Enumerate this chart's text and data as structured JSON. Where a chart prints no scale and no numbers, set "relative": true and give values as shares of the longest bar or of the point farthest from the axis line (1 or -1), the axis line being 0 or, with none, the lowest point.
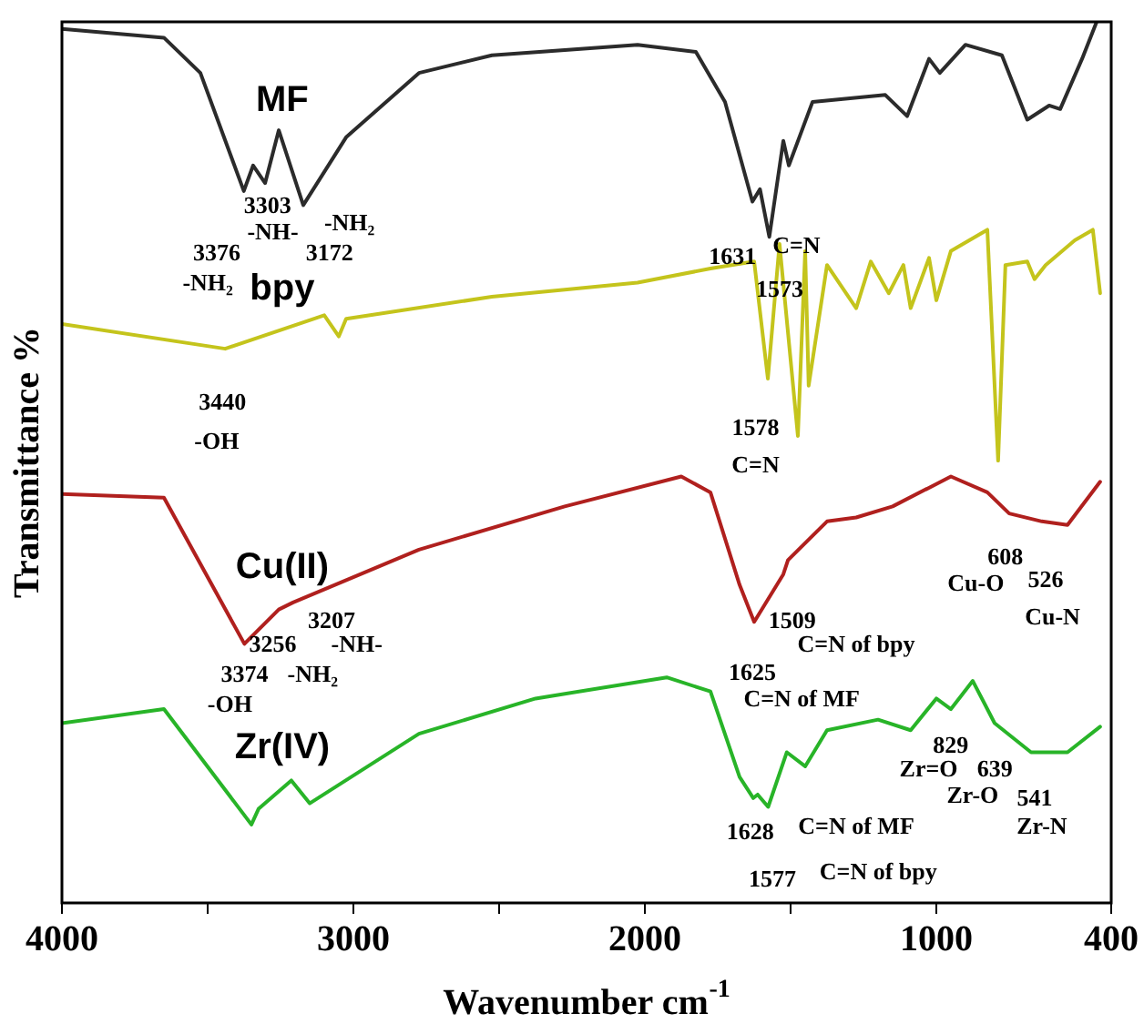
{
  "chart_data": {
    "type": "line",
    "relative": true,
    "xlabel": "Wavenumber cm$^{-1}$",
    "ylabel": "Transmittance %",
    "xlim": [
      4000,
      400
    ],
    "xticks": [
      4000,
      {
        "value": 3500,
        "label": null
      },
      3000,
      {
        "value": 2500,
        "label": null
      },
      2000,
      {
        "value": 1500,
        "label": null
      },
      1000,
      400
    ],
    "grid": false,
    "legend": false,
    "marker": "none",
    "line_style": "solid",
    "series": [
      {
        "name": "MF",
        "color": "#2b2b2b",
        "x": [
          4000,
          3650,
          3525,
          3376,
          3344,
          3303,
          3256,
          3172,
          3025,
          2775,
          2525,
          2025,
          1825,
          1725,
          1631,
          1605,
          1573,
          1525,
          1506,
          1425,
          1175,
          1100,
          1025,
          988,
          900,
          775,
          688,
          613,
          575,
          500,
          450
        ],
        "values": [
          0.992,
          0.982,
          0.942,
          0.808,
          0.837,
          0.817,
          0.877,
          0.792,
          0.869,
          0.942,
          0.962,
          0.974,
          0.966,
          0.909,
          0.796,
          0.81,
          0.756,
          0.865,
          0.837,
          0.909,
          0.917,
          0.893,
          0.958,
          0.942,
          0.974,
          0.962,
          0.889,
          0.905,
          0.901,
          0.958,
          1
        ]
      },
      {
        "name": "bpy",
        "color": "#c4c41c",
        "x": [
          4000,
          3440,
          3100,
          3050,
          3025,
          2525,
          2025,
          1775,
          1625,
          1578,
          1538,
          1475,
          1450,
          1438,
          1375,
          1275,
          1225,
          1163,
          1113,
          1088,
          1025,
          1000,
          950,
          825,
          788,
          763,
          688,
          663,
          625,
          525,
          463,
          438
        ],
        "values": [
          0.657,
          0.629,
          0.667,
          0.643,
          0.663,
          0.688,
          0.704,
          0.72,
          0.728,
          0.595,
          0.748,
          0.53,
          0.74,
          0.587,
          0.724,
          0.675,
          0.728,
          0.692,
          0.724,
          0.675,
          0.732,
          0.684,
          0.74,
          0.764,
          0.502,
          0.724,
          0.728,
          0.708,
          0.724,
          0.752,
          0.764,
          0.692
        ]
      },
      {
        "name": "Cu(II)",
        "color": "#b0201e",
        "x": [
          4000,
          3650,
          3374,
          3256,
          3207,
          2775,
          2275,
          1875,
          1775,
          1675,
          1625,
          1525,
          1509,
          1375,
          1275,
          1150,
          950,
          825,
          750,
          638,
          550,
          438
        ],
        "values": [
          0.464,
          0.46,
          0.294,
          0.333,
          0.341,
          0.401,
          0.45,
          0.484,
          0.466,
          0.361,
          0.319,
          0.373,
          0.389,
          0.433,
          0.4375,
          0.45,
          0.484,
          0.466,
          0.442,
          0.433,
          0.429,
          0.478
        ]
      },
      {
        "name": "Zr(IV)",
        "color": "#28b428",
        "x": [
          4000,
          3650,
          3350,
          3325,
          3213,
          3150,
          2775,
          2375,
          1925,
          1775,
          1675,
          1628,
          1613,
          1577,
          1513,
          1450,
          1375,
          1200,
          1088,
          1000,
          950,
          875,
          800,
          675,
          550,
          438
        ],
        "values": [
          0.204,
          0.22,
          0.089,
          0.107,
          0.139,
          0.113,
          0.192,
          0.232,
          0.256,
          0.24,
          0.143,
          0.119,
          0.123,
          0.109,
          0.171,
          0.155,
          0.196,
          0.208,
          0.196,
          0.232,
          0.22,
          0.252,
          0.204,
          0.171,
          0.171,
          0.2
        ]
      }
    ],
    "annotations": [
      "3376",
      "-NH₂",
      "3303",
      "-NH-",
      "3172",
      "-NH₂",
      "1631",
      "C=N",
      "1573",
      "3440",
      "-OH",
      "1578",
      "C=N",
      "608",
      "Cu-O",
      "526",
      "Cu-N",
      "3207",
      "-NH-",
      "3256",
      "1509",
      "C=N of bpy",
      "3374",
      "-NH₂",
      "-OH",
      "1625",
      "C=N of MF",
      "829",
      "Zr=O",
      "639",
      "Zr-O",
      "541",
      "Zr-N",
      "1628",
      "C=N of MF",
      "1577",
      "C=N of bpy"
    ]
  }
}
